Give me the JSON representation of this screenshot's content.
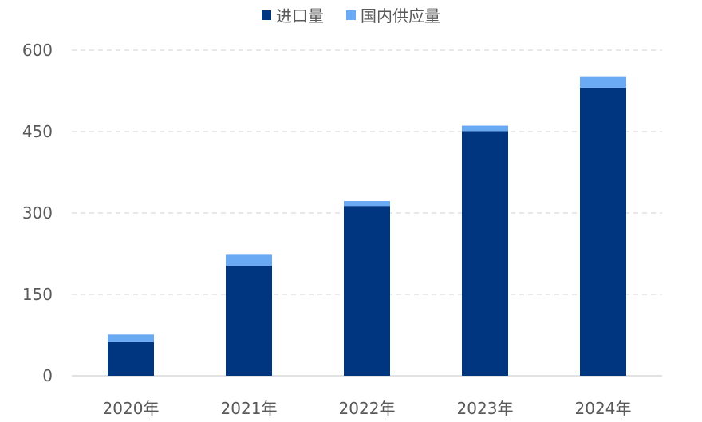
{
  "chart_data": {
    "type": "bar",
    "stacked": true,
    "categories": [
      "2020年",
      "2021年",
      "2022年",
      "2023年",
      "2024年"
    ],
    "series": [
      {
        "name": "进口量",
        "color": "#003580",
        "values": [
          62,
          203,
          313,
          451,
          531
        ]
      },
      {
        "name": "国内供应量",
        "color": "#6aa9f4",
        "values": [
          14,
          20,
          9,
          10,
          21
        ]
      }
    ],
    "ylim": [
      0,
      600
    ],
    "yticks": [
      0,
      150,
      300,
      450,
      600
    ],
    "grid": true,
    "legend_position": "top-center"
  }
}
